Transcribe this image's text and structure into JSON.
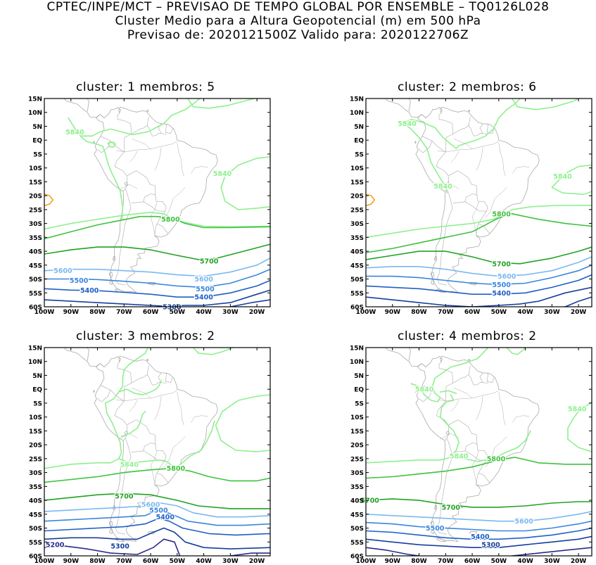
{
  "header": {
    "line1": "CPTEC/INPE/MCT – PREVISAO DE TEMPO GLOBAL POR ENSEMBLE – TQ0126L028",
    "line2": "Cluster Medio para a Altura Geopotencial (m) em 500 hPa",
    "line3": "Previsao de: 2020121500Z   Valido para: 2020122706Z"
  },
  "axes": {
    "lat_ticks": [
      "15N",
      "10N",
      "5N",
      "EQ",
      "5S",
      "10S",
      "15S",
      "20S",
      "25S",
      "30S",
      "35S",
      "40S",
      "45S",
      "50S",
      "55S",
      "60S"
    ],
    "lon_ticks": [
      "100W",
      "90W",
      "80W",
      "70W",
      "60W",
      "50W",
      "40W",
      "30W",
      "20W"
    ]
  },
  "colors": {
    "c5840": "#8ef08e",
    "c5800": "#3ec23e",
    "c5700": "#22a222",
    "c5600": "#7ab9f2",
    "c5500": "#3a86de",
    "c5400": "#1f5fc6",
    "c5300": "#173f9e",
    "c5200": "#2b2b8c",
    "cWarm": "#f2a020",
    "coast": "#aaaaaa"
  },
  "panels": [
    {
      "title": "cluster: 1   membros: 5",
      "labels": [
        {
          "text": "5840",
          "lon": -88.5,
          "lat": 3
        },
        {
          "text": "5840",
          "lon": -33,
          "lat": -12
        },
        {
          "text": "5800",
          "lon": -52.5,
          "lat": -28.5
        },
        {
          "text": "5700",
          "lon": -38,
          "lon2": 0,
          "lat": -43.5
        },
        {
          "text": "5600",
          "lon": -93,
          "lat": -47
        },
        {
          "text": "5600",
          "lon": -40,
          "lat": -50
        },
        {
          "text": "5500",
          "lon": -87,
          "lat": -50.5
        },
        {
          "text": "5500",
          "lon": -39.5,
          "lat": -53.5
        },
        {
          "text": "5400",
          "lon": -83,
          "lat": -54
        },
        {
          "text": "5400",
          "lon": -40,
          "lat": -56.5
        },
        {
          "text": "5300",
          "lon": -52,
          "lat": -60
        }
      ]
    },
    {
      "title": "cluster: 2   membros: 6",
      "labels": [
        {
          "text": "5840",
          "lon": -84.5,
          "lat": 6
        },
        {
          "text": "5840",
          "lon": -26,
          "lat": -13
        },
        {
          "text": "5840",
          "lon": -71,
          "lat": -16.5
        },
        {
          "text": "5800",
          "lon": -49,
          "lat": -26.5
        },
        {
          "text": "5700",
          "lon": -49,
          "lat": -44.5
        },
        {
          "text": "5600",
          "lon": -47,
          "lat": -49
        },
        {
          "text": "5500",
          "lon": -49,
          "lat": -52
        },
        {
          "text": "5400",
          "lon": -49,
          "lat": -55
        }
      ]
    },
    {
      "title": "cluster: 3   membros: 2",
      "labels": [
        {
          "text": "5840",
          "lon": -68,
          "lat": -27
        },
        {
          "text": "5800",
          "lon": -50.5,
          "lat": -28.5
        },
        {
          "text": "5700",
          "lon": -70,
          "lat": -38.5
        },
        {
          "text": "5600",
          "lon": -60,
          "lat": -41.5
        },
        {
          "text": "5500",
          "lon": -57,
          "lat": -43.5
        },
        {
          "text": "5400",
          "lon": -54.5,
          "lat": -46
        },
        {
          "text": "5300",
          "lon": -71.5,
          "lat": -56.5
        },
        {
          "text": "5200",
          "lon": -96,
          "lat": -56
        }
      ]
    },
    {
      "title": "cluster: 4   membros: 2",
      "labels": [
        {
          "text": "5840",
          "lon": -78,
          "lat": 0
        },
        {
          "text": "5840",
          "lon": -20.5,
          "lat": -7
        },
        {
          "text": "5840",
          "lon": -65,
          "lat": -24
        },
        {
          "text": "5800",
          "lon": -51,
          "lat": -25
        },
        {
          "text": "5700",
          "lon": -98.5,
          "lat": -40
        },
        {
          "text": "5700",
          "lon": -68,
          "lat": -42.5
        },
        {
          "text": "5600",
          "lon": -40.5,
          "lat": -47.5
        },
        {
          "text": "5500",
          "lon": -74,
          "lat": -50
        },
        {
          "text": "5400",
          "lon": -57,
          "lat": -53
        },
        {
          "text": "5300",
          "lon": -53,
          "lat": -56
        }
      ]
    }
  ]
}
